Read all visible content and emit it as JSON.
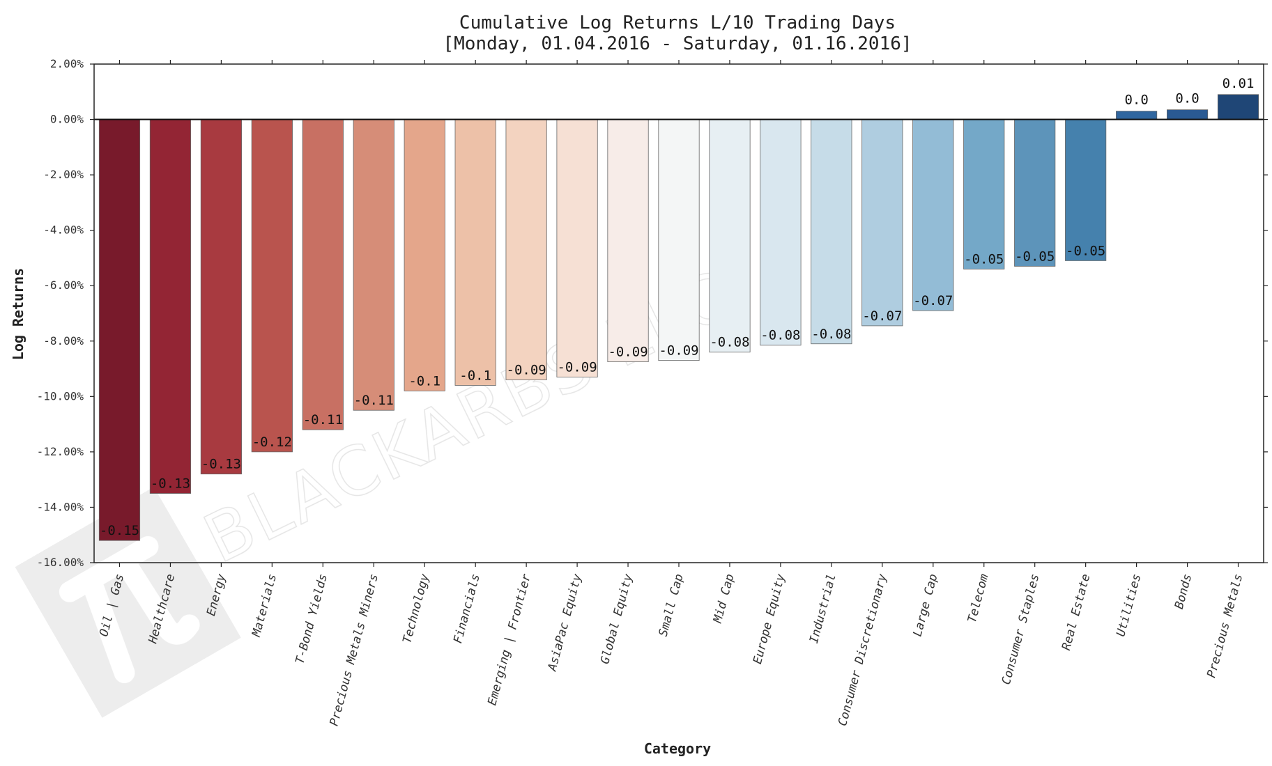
{
  "chart_data": {
    "type": "bar",
    "title": "Cumulative Log Returns L/10 Trading Days",
    "subtitle": "[Monday, 01.04.2016 - Saturday, 01.16.2016]",
    "xlabel": "Category",
    "ylabel": "Log Returns",
    "ylim": [
      -0.16,
      0.02
    ],
    "yticks": [
      0.02,
      0.0,
      -0.02,
      -0.04,
      -0.06,
      -0.08,
      -0.1,
      -0.12,
      -0.14,
      -0.16
    ],
    "ytick_labels": [
      "2.00%",
      "0.00%",
      "-2.00%",
      "-4.00%",
      "-6.00%",
      "-8.00%",
      "-10.00%",
      "-12.00%",
      "-14.00%",
      "-16.00%"
    ],
    "grid": false,
    "categories": [
      "Oil | Gas",
      "Healthcare",
      "Energy",
      "Materials",
      "T-Bond Yields",
      "Precious Metals Miners",
      "Technology",
      "Financials",
      "Emerging | Frontier",
      "AsiaPac Equity",
      "Global Equity",
      "Small Cap",
      "Mid Cap",
      "Europe Equity",
      "Industrial",
      "Consumer Discretionary",
      "Large Cap",
      "Telecom",
      "Consumer Staples",
      "Real Estate",
      "Utilities",
      "Bonds",
      "Precious Metals"
    ],
    "values": [
      -0.152,
      -0.135,
      -0.128,
      -0.12,
      -0.112,
      -0.105,
      -0.098,
      -0.096,
      -0.094,
      -0.093,
      -0.0875,
      -0.087,
      -0.084,
      -0.0815,
      -0.081,
      -0.0745,
      -0.069,
      -0.054,
      -0.053,
      -0.051,
      0.003,
      0.0035,
      0.009
    ],
    "data_labels": [
      "-0.15",
      "-0.13",
      "-0.13",
      "-0.12",
      "-0.11",
      "-0.11",
      "-0.1",
      "-0.1",
      "-0.09",
      "-0.09",
      "-0.09",
      "-0.09",
      "-0.08",
      "-0.08",
      "-0.08",
      "-0.07",
      "-0.07",
      "-0.05",
      "-0.05",
      "-0.05",
      "0.0",
      "0.0",
      "0.01"
    ],
    "colors": [
      "#781a2b",
      "#932534",
      "#a83a40",
      "#b9544e",
      "#c87063",
      "#d68d78",
      "#e4a68b",
      "#edc1a8",
      "#f3d3c0",
      "#f6e0d4",
      "#f7ece8",
      "#f4f6f6",
      "#e7eff3",
      "#d9e7ef",
      "#c6dce8",
      "#afcde0",
      "#93bcd6",
      "#74a8c8",
      "#5d94ba",
      "#4581ad",
      "#30669f",
      "#2a5a93",
      "#1f4676"
    ]
  },
  "watermark": {
    "text": "BLACKARBS LLC"
  }
}
